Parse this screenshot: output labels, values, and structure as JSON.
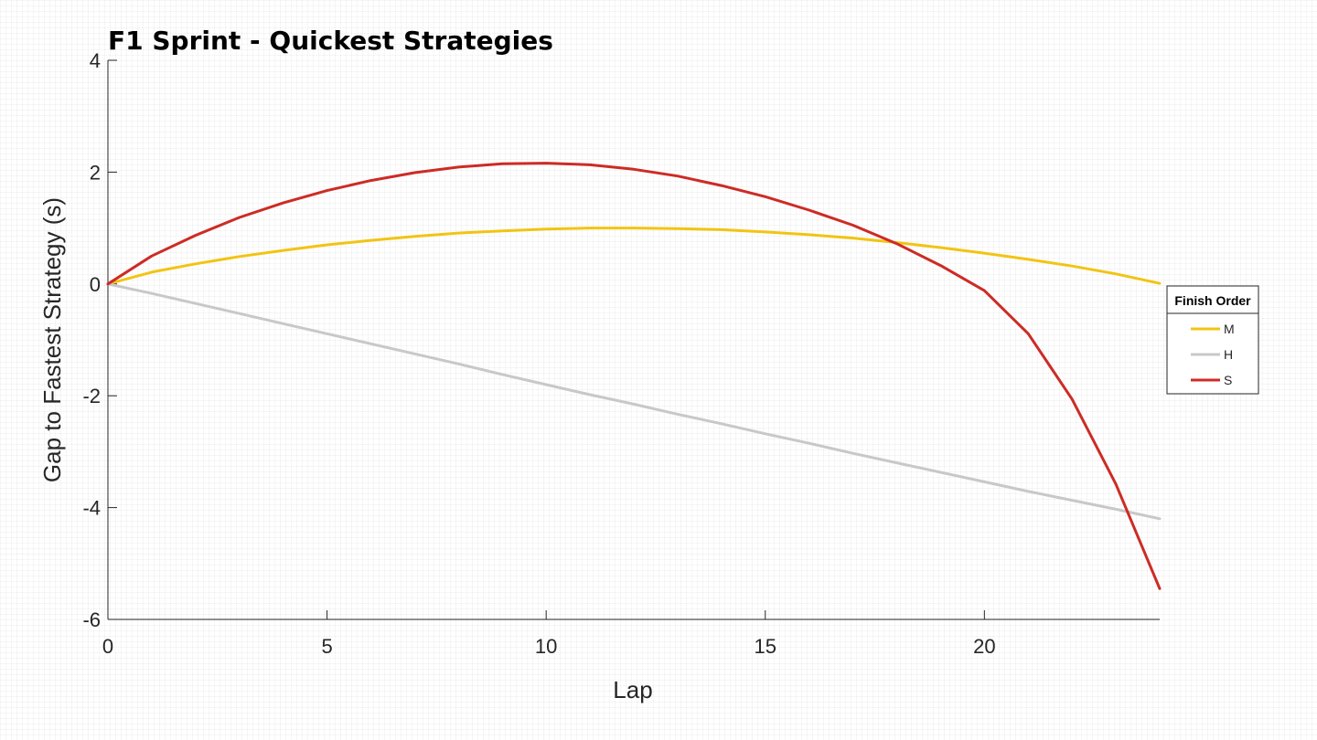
{
  "chart_data": {
    "type": "line",
    "title": "F1 Sprint - Quickest Strategies",
    "xlabel": "Lap",
    "ylabel": "Gap to Fastest Strategy (s)",
    "xlim": [
      0,
      24
    ],
    "ylim": [
      -6,
      4
    ],
    "xticks": [
      0,
      5,
      10,
      15,
      20
    ],
    "yticks": [
      4,
      2,
      0,
      -2,
      -4,
      -6
    ],
    "grid": false,
    "legend": {
      "title": "Finish Order",
      "placement": "right"
    },
    "x": [
      0,
      1,
      2,
      3,
      4,
      5,
      6,
      7,
      8,
      9,
      10,
      11,
      12,
      13,
      14,
      15,
      16,
      17,
      18,
      19,
      20,
      21,
      22,
      23,
      24
    ],
    "series": [
      {
        "name": "M",
        "color": "#f2c413",
        "values": [
          0,
          0.21,
          0.36,
          0.49,
          0.6,
          0.7,
          0.78,
          0.85,
          0.91,
          0.95,
          0.98,
          1.0,
          1.0,
          0.99,
          0.97,
          0.93,
          0.88,
          0.82,
          0.74,
          0.65,
          0.55,
          0.44,
          0.32,
          0.18,
          0.01
        ]
      },
      {
        "name": "H",
        "color": "#c8c8c8",
        "values": [
          0,
          -0.17,
          -0.35,
          -0.53,
          -0.71,
          -0.89,
          -1.07,
          -1.25,
          -1.43,
          -1.62,
          -1.8,
          -1.98,
          -2.15,
          -2.33,
          -2.5,
          -2.68,
          -2.85,
          -3.03,
          -3.2,
          -3.37,
          -3.54,
          -3.71,
          -3.87,
          -4.03,
          -4.2
        ]
      },
      {
        "name": "S",
        "color": "#cd2b25",
        "values": [
          0,
          0.5,
          0.87,
          1.19,
          1.45,
          1.67,
          1.85,
          1.99,
          2.09,
          2.15,
          2.16,
          2.13,
          2.05,
          1.93,
          1.76,
          1.56,
          1.32,
          1.05,
          0.72,
          0.33,
          -0.12,
          -0.89,
          -2.06,
          -3.58,
          -5.45
        ]
      }
    ]
  }
}
